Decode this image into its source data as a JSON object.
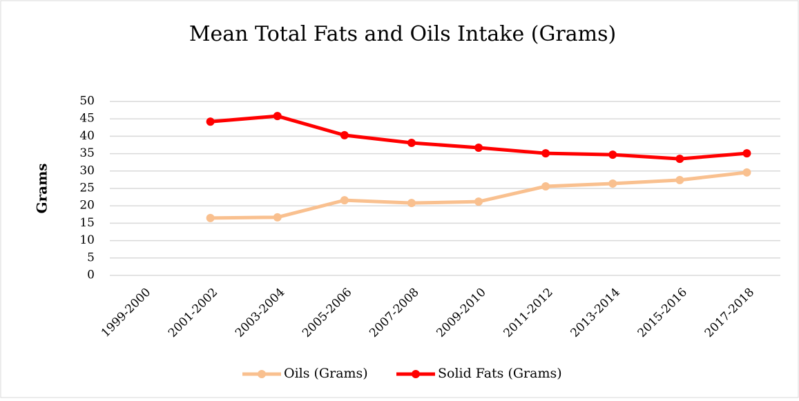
{
  "chart_data": {
    "type": "line",
    "title": "Mean Total Fats and Oils Intake (Grams)",
    "y_label": "Grams",
    "categories": [
      "1999-2000",
      "2001-2002",
      "2003-2004",
      "2005-2006",
      "2007-2008",
      "2009-2010",
      "2011-2012",
      "2013-2014",
      "2015-2016",
      "2017-2018"
    ],
    "series": [
      {
        "name": "Oils (Grams)",
        "color": "#f9c08f",
        "values": [
          null,
          16.5,
          16.7,
          21.6,
          20.8,
          21.2,
          25.6,
          26.4,
          27.4,
          29.6
        ]
      },
      {
        "name": "Solid Fats (Grams)",
        "color": "#ff0000",
        "values": [
          null,
          44.2,
          45.8,
          40.3,
          38.1,
          36.7,
          35.1,
          34.7,
          33.5,
          35.1
        ]
      }
    ],
    "ylim": [
      0,
      50
    ],
    "yticks": [
      0,
      5,
      10,
      15,
      20,
      25,
      30,
      35,
      40,
      45,
      50
    ],
    "grid": true,
    "legend": "bottom"
  }
}
